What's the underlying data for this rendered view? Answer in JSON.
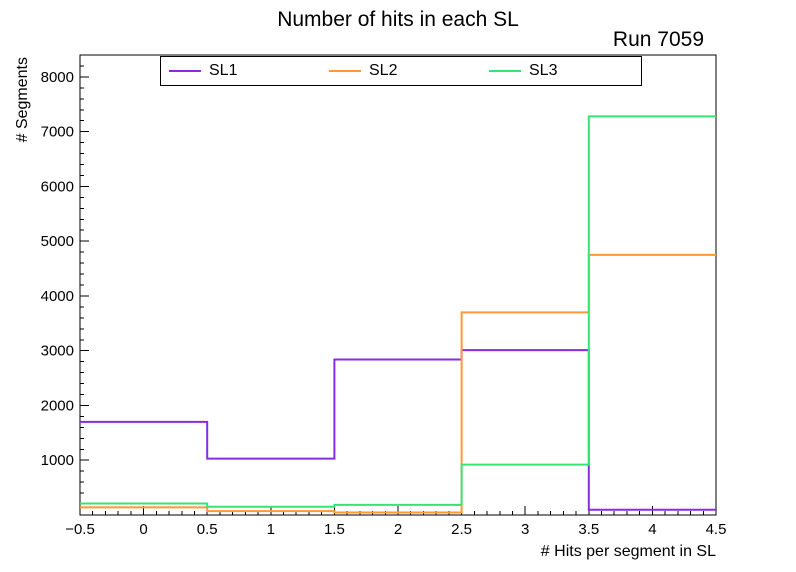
{
  "header": {
    "title": "Number of hits in each SL",
    "run_label": "Run 7059"
  },
  "chart_data": {
    "type": "step-histogram",
    "title": "Number of hits in each SL",
    "annotation": "Run 7059",
    "xlabel": "# Hits per segment in SL",
    "ylabel": "# Segments",
    "xlim": [
      -0.5,
      4.5
    ],
    "ylim": [
      0,
      8400
    ],
    "grid": false,
    "legend_position": "top-inside",
    "bin_edges": [
      -0.5,
      0.5,
      1.5,
      2.5,
      3.5,
      4.5
    ],
    "x_major_ticks": [
      -0.5,
      0,
      0.5,
      1,
      1.5,
      2,
      2.5,
      3,
      3.5,
      4,
      4.5
    ],
    "x_tick_labels": [
      "−0.5",
      "0",
      "0.5",
      "1",
      "1.5",
      "2",
      "2.5",
      "3",
      "3.5",
      "4",
      "4.5"
    ],
    "x_minor_step": 0.1,
    "y_major_ticks": [
      1000,
      2000,
      3000,
      4000,
      5000,
      6000,
      7000,
      8000
    ],
    "y_tick_labels": [
      "1000",
      "2000",
      "3000",
      "4000",
      "5000",
      "6000",
      "7000",
      "8000"
    ],
    "y_minor_step": 200,
    "series": [
      {
        "name": "SL1",
        "color": "#8a2be2",
        "values": [
          1700,
          1030,
          2840,
          3010,
          95
        ]
      },
      {
        "name": "SL2",
        "color": "#ff9933",
        "values": [
          140,
          70,
          45,
          3700,
          4750
        ]
      },
      {
        "name": "SL3",
        "color": "#33e673",
        "values": [
          210,
          150,
          185,
          920,
          7280
        ]
      }
    ]
  }
}
